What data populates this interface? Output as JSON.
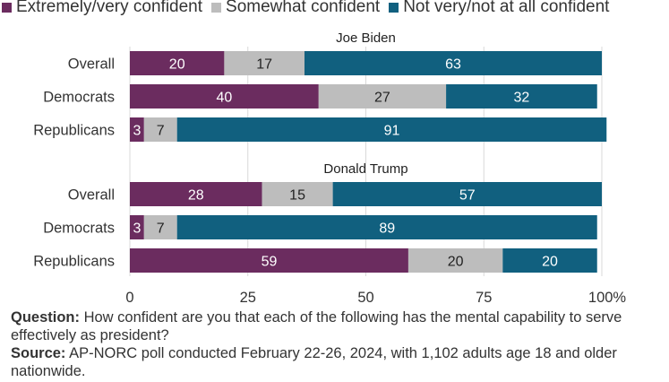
{
  "colors": {
    "extremely": "#6b2c5f",
    "somewhat": "#bdbdbd",
    "notvery": "#11607f",
    "grid": "#d9d9d9"
  },
  "legend": [
    {
      "label": "Extremely/very confident",
      "color": "#6b2c5f"
    },
    {
      "label": "Somewhat confident",
      "color": "#bdbdbd"
    },
    {
      "label": "Not very/not at all confident",
      "color": "#11607f"
    }
  ],
  "chart_data": {
    "type": "bar",
    "orientation": "horizontal",
    "stacked": true,
    "xlim": [
      0,
      100
    ],
    "xticks": [
      "0",
      "25",
      "50",
      "75",
      "100%"
    ],
    "tick_values": [
      0,
      25,
      50,
      75,
      100
    ],
    "grid": true,
    "legend_position": "top",
    "groups": [
      {
        "title": "Joe Biden",
        "categories": [
          "Overall",
          "Democrats",
          "Republicans"
        ],
        "series": [
          {
            "name": "Extremely/very confident",
            "values": [
              20,
              40,
              3
            ]
          },
          {
            "name": "Somewhat confident",
            "values": [
              17,
              27,
              7
            ]
          },
          {
            "name": "Not very/not at all confident",
            "values": [
              63,
              32,
              91
            ]
          }
        ]
      },
      {
        "title": "Donald Trump",
        "categories": [
          "Overall",
          "Democrats",
          "Republicans"
        ],
        "series": [
          {
            "name": "Extremely/very confident",
            "values": [
              28,
              3,
              59
            ]
          },
          {
            "name": "Somewhat confident",
            "values": [
              15,
              7,
              20
            ]
          },
          {
            "name": "Not very/not at all confident",
            "values": [
              57,
              89,
              20
            ]
          }
        ]
      }
    ]
  },
  "footer": {
    "question_label": "Question:",
    "question_text": " How confident are you that each of the following has the mental capability to serve effectively as president?",
    "source_label": "Source:",
    "source_text": " AP-NORC poll conducted February 22-26, 2024, with 1,102 adults age 18 and older nationwide."
  }
}
